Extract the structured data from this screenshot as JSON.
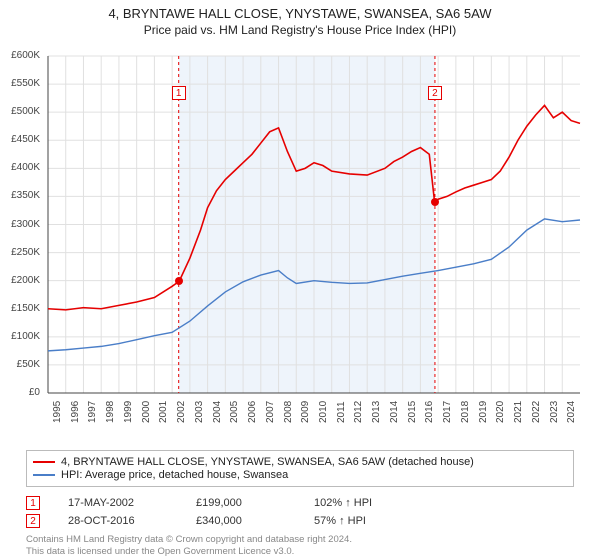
{
  "title": {
    "line1": "4, BRYNTAWE HALL CLOSE, YNYSTAWE, SWANSEA, SA6 5AW",
    "line2": "Price paid vs. HM Land Registry's House Price Index (HPI)"
  },
  "chart": {
    "type": "line",
    "background_color": "#ffffff",
    "highlight_band": {
      "x_start_year": 2002.37,
      "x_end_year": 2016.82,
      "fill": "#eef4fb"
    },
    "grid_color": "#e0e0e0",
    "axis_color": "#444444",
    "ylim": [
      0,
      600000
    ],
    "ytick_step": 50000,
    "ytick_prefix": "£",
    "ytick_suffix": "K",
    "x_years": [
      1995,
      1996,
      1997,
      1998,
      1999,
      2000,
      2001,
      2002,
      2003,
      2004,
      2005,
      2006,
      2007,
      2008,
      2009,
      2010,
      2011,
      2012,
      2013,
      2014,
      2015,
      2016,
      2017,
      2018,
      2019,
      2020,
      2021,
      2022,
      2023,
      2024
    ],
    "x_range": [
      1995,
      2025
    ],
    "series": [
      {
        "name": "4, BRYNTAWE HALL CLOSE, YNYSTAWE, SWANSEA, SA6 5AW (detached house)",
        "color": "#e60000",
        "line_width": 1.6,
        "points": [
          [
            1995,
            150000
          ],
          [
            1996,
            148000
          ],
          [
            1997,
            152000
          ],
          [
            1998,
            150000
          ],
          [
            1999,
            156000
          ],
          [
            2000,
            162000
          ],
          [
            2001,
            170000
          ],
          [
            2002,
            190000
          ],
          [
            2002.4,
            199000
          ],
          [
            2003,
            240000
          ],
          [
            2003.6,
            290000
          ],
          [
            2004,
            330000
          ],
          [
            2004.5,
            360000
          ],
          [
            2005,
            380000
          ],
          [
            2005.5,
            395000
          ],
          [
            2006,
            410000
          ],
          [
            2006.5,
            425000
          ],
          [
            2007,
            445000
          ],
          [
            2007.5,
            465000
          ],
          [
            2008,
            472000
          ],
          [
            2008.5,
            430000
          ],
          [
            2009,
            395000
          ],
          [
            2009.5,
            400000
          ],
          [
            2010,
            410000
          ],
          [
            2010.5,
            405000
          ],
          [
            2011,
            395000
          ],
          [
            2012,
            390000
          ],
          [
            2013,
            388000
          ],
          [
            2014,
            400000
          ],
          [
            2014.5,
            412000
          ],
          [
            2015,
            420000
          ],
          [
            2015.5,
            430000
          ],
          [
            2016,
            437000
          ],
          [
            2016.5,
            425000
          ],
          [
            2016.8,
            340000
          ],
          [
            2017,
            345000
          ],
          [
            2017.5,
            350000
          ],
          [
            2018,
            358000
          ],
          [
            2018.5,
            365000
          ],
          [
            2019,
            370000
          ],
          [
            2019.5,
            375000
          ],
          [
            2020,
            380000
          ],
          [
            2020.5,
            395000
          ],
          [
            2021,
            420000
          ],
          [
            2021.5,
            450000
          ],
          [
            2022,
            475000
          ],
          [
            2022.5,
            495000
          ],
          [
            2023,
            512000
          ],
          [
            2023.5,
            490000
          ],
          [
            2024,
            500000
          ],
          [
            2024.5,
            485000
          ],
          [
            2025,
            480000
          ]
        ]
      },
      {
        "name": "HPI: Average price, detached house, Swansea",
        "color": "#4a7ec8",
        "line_width": 1.4,
        "points": [
          [
            1995,
            75000
          ],
          [
            1996,
            77000
          ],
          [
            1997,
            80000
          ],
          [
            1998,
            83000
          ],
          [
            1999,
            88000
          ],
          [
            2000,
            95000
          ],
          [
            2001,
            102000
          ],
          [
            2002,
            108000
          ],
          [
            2003,
            128000
          ],
          [
            2004,
            155000
          ],
          [
            2005,
            180000
          ],
          [
            2006,
            198000
          ],
          [
            2007,
            210000
          ],
          [
            2008,
            218000
          ],
          [
            2008.5,
            205000
          ],
          [
            2009,
            195000
          ],
          [
            2010,
            200000
          ],
          [
            2011,
            197000
          ],
          [
            2012,
            195000
          ],
          [
            2013,
            196000
          ],
          [
            2014,
            202000
          ],
          [
            2015,
            208000
          ],
          [
            2016,
            213000
          ],
          [
            2017,
            218000
          ],
          [
            2018,
            224000
          ],
          [
            2019,
            230000
          ],
          [
            2020,
            238000
          ],
          [
            2021,
            260000
          ],
          [
            2022,
            290000
          ],
          [
            2023,
            310000
          ],
          [
            2024,
            305000
          ],
          [
            2025,
            308000
          ]
        ]
      }
    ],
    "sale_markers": [
      {
        "idx": "1",
        "year": 2002.37,
        "value": 199000,
        "dash_color": "#e60000"
      },
      {
        "idx": "2",
        "year": 2016.82,
        "value": 340000,
        "dash_color": "#e60000"
      }
    ],
    "label_fontsize": 10,
    "title_fontsize": 13
  },
  "legend": {
    "items": [
      {
        "color": "#e60000",
        "label": "4, BRYNTAWE HALL CLOSE, YNYSTAWE, SWANSEA, SA6 5AW (detached house)"
      },
      {
        "color": "#4a7ec8",
        "label": "HPI: Average price, detached house, Swansea"
      }
    ]
  },
  "sales": [
    {
      "idx": "1",
      "date": "17-MAY-2002",
      "price": "£199,000",
      "pct": "102% ↑ HPI",
      "marker_color": "#e60000"
    },
    {
      "idx": "2",
      "date": "28-OCT-2016",
      "price": "£340,000",
      "pct": "57% ↑ HPI",
      "marker_color": "#e60000"
    }
  ],
  "footer": {
    "line1": "Contains HM Land Registry data © Crown copyright and database right 2024.",
    "line2": "This data is licensed under the Open Government Licence v3.0."
  }
}
